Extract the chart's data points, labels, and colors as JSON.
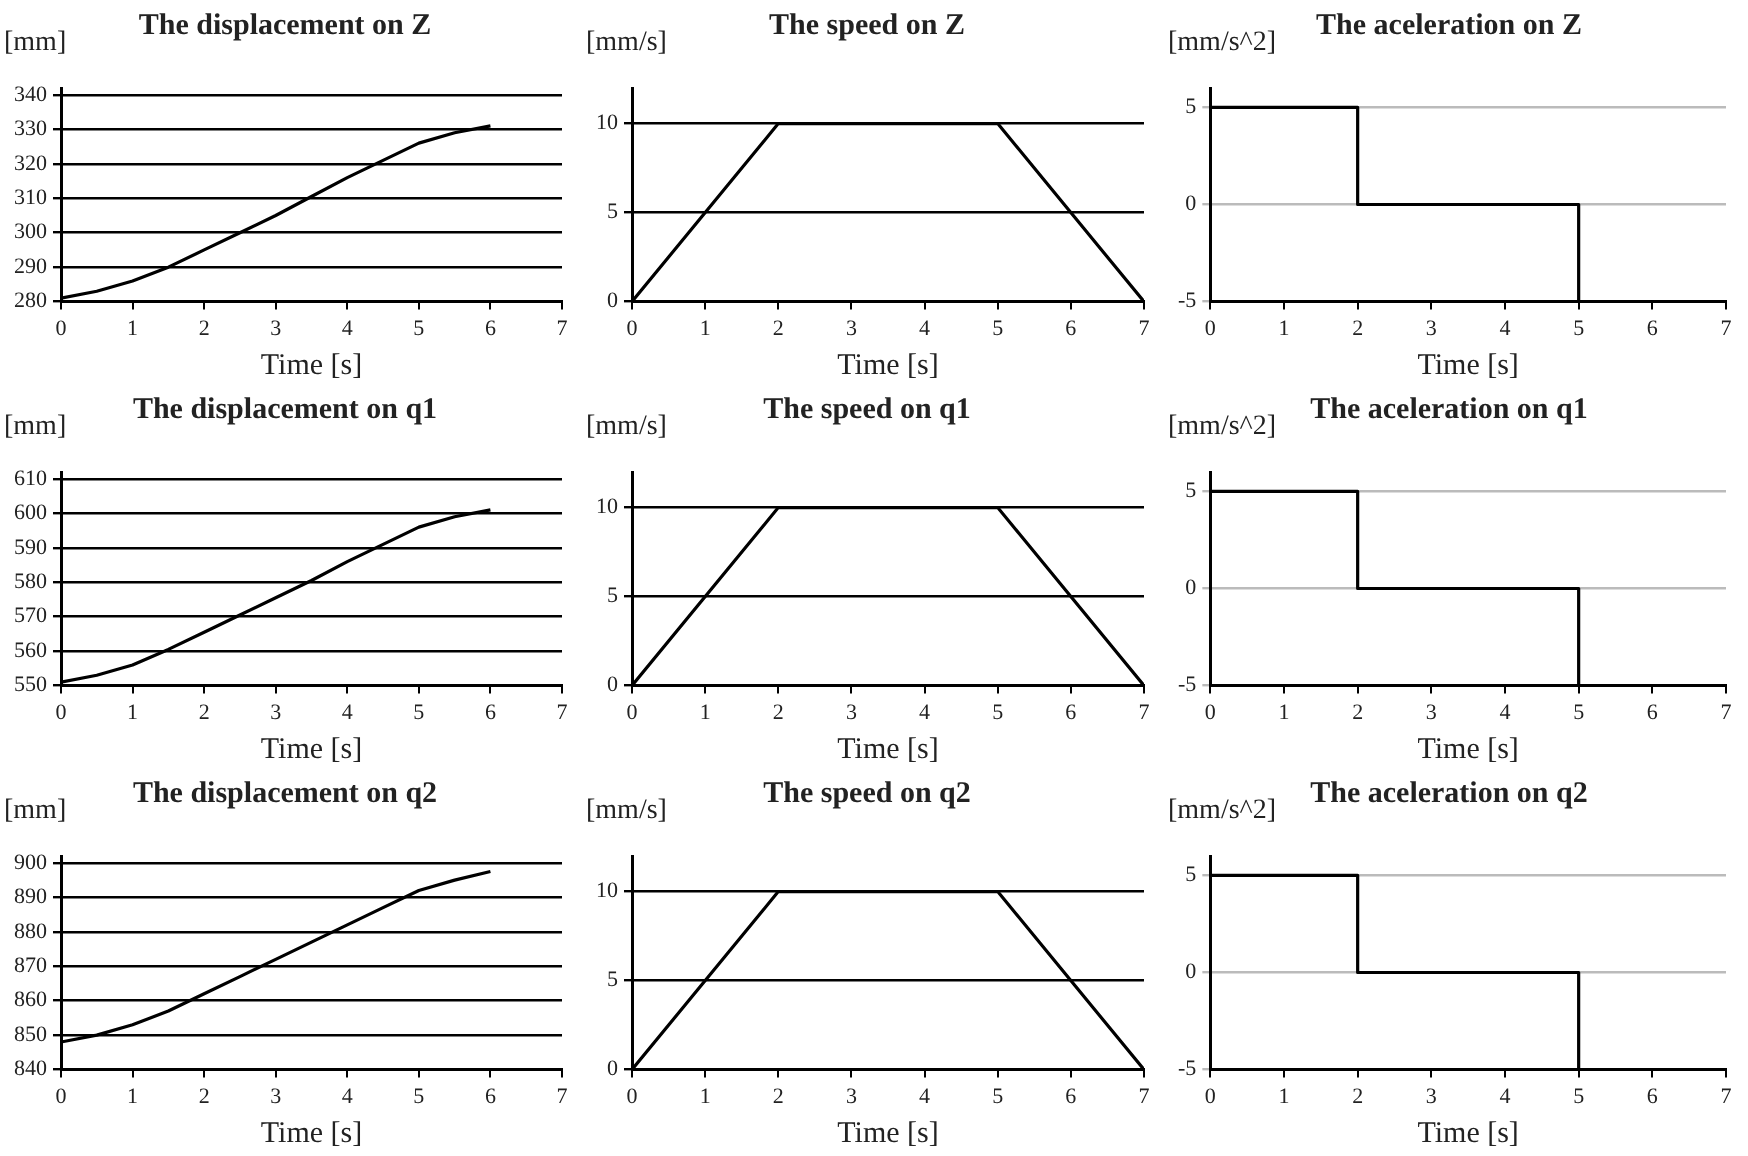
{
  "chart_data": [
    {
      "type": "line",
      "title": "The displacement on Z",
      "ylabel": "[mm]",
      "xlabel": "Time [s]",
      "xlim": [
        0,
        7
      ],
      "xticks": [
        0,
        1,
        2,
        3,
        4,
        5,
        6,
        7
      ],
      "ylim": [
        280,
        342
      ],
      "yticks": [
        280,
        290,
        300,
        310,
        320,
        330,
        340
      ],
      "grid": "y",
      "marker": "none",
      "line_style": "solid",
      "series": [
        {
          "color": "#000000",
          "x": [
            0,
            0.5,
            1,
            1.5,
            2,
            2.5,
            3,
            3.5,
            4,
            4.5,
            5,
            5.5,
            6
          ],
          "values": [
            281,
            283,
            286,
            290,
            295,
            300,
            305,
            310.5,
            316,
            321,
            326,
            329,
            331
          ]
        }
      ]
    },
    {
      "type": "line",
      "title": "The speed on Z",
      "ylabel": "[mm/s]",
      "xlabel": "Time [s]",
      "xlim": [
        0,
        7
      ],
      "xticks": [
        0,
        1,
        2,
        3,
        4,
        5,
        6,
        7
      ],
      "ylim": [
        0,
        12
      ],
      "yticks": [
        0,
        5,
        10
      ],
      "grid": "y",
      "marker": "none",
      "line_style": "solid",
      "series": [
        {
          "color": "#000000",
          "x": [
            0,
            2,
            5,
            7
          ],
          "values": [
            0,
            10,
            10,
            0
          ]
        }
      ]
    },
    {
      "type": "step",
      "title": "The aceleration on Z",
      "ylabel": "[mm/s^2]",
      "xlabel": "Time [s]",
      "xlim": [
        0,
        7
      ],
      "xticks": [
        0,
        1,
        2,
        3,
        4,
        5,
        6,
        7
      ],
      "ylim": [
        -5,
        6
      ],
      "yticks": [
        -5,
        0,
        5
      ],
      "grid": "y",
      "marker": "none",
      "line_style": "solid",
      "series": [
        {
          "color": "#000000",
          "x": [
            0,
            2,
            5,
            7
          ],
          "values": [
            5,
            0,
            -5,
            -5
          ]
        }
      ]
    },
    {
      "type": "line",
      "title": "The displacement on q1",
      "ylabel": "[mm]",
      "xlabel": "Time [s]",
      "xlim": [
        0,
        7
      ],
      "xticks": [
        0,
        1,
        2,
        3,
        4,
        5,
        6,
        7
      ],
      "ylim": [
        550,
        612
      ],
      "yticks": [
        550,
        560,
        570,
        580,
        590,
        600,
        610
      ],
      "grid": "y",
      "marker": "none",
      "line_style": "solid",
      "series": [
        {
          "color": "#000000",
          "x": [
            0,
            0.5,
            1,
            1.5,
            2,
            2.5,
            3,
            3.5,
            4,
            4.5,
            5,
            5.5,
            6
          ],
          "values": [
            551,
            553,
            556,
            560.5,
            565.5,
            570.5,
            575.5,
            580.5,
            586,
            591,
            596,
            599,
            601
          ]
        }
      ]
    },
    {
      "type": "line",
      "title": "The speed on q1",
      "ylabel": "[mm/s]",
      "xlabel": "Time [s]",
      "xlim": [
        0,
        7
      ],
      "xticks": [
        0,
        1,
        2,
        3,
        4,
        5,
        6,
        7
      ],
      "ylim": [
        0,
        12
      ],
      "yticks": [
        0,
        5,
        10
      ],
      "grid": "y",
      "marker": "none",
      "line_style": "solid",
      "series": [
        {
          "color": "#000000",
          "x": [
            0,
            2,
            5,
            7
          ],
          "values": [
            0,
            10,
            10,
            0
          ]
        }
      ]
    },
    {
      "type": "step",
      "title": "The aceleration on q1",
      "ylabel": "[mm/s^2]",
      "xlabel": "Time [s]",
      "xlim": [
        0,
        7
      ],
      "xticks": [
        0,
        1,
        2,
        3,
        4,
        5,
        6,
        7
      ],
      "ylim": [
        -5,
        6
      ],
      "yticks": [
        -5,
        0,
        5
      ],
      "grid": "y",
      "marker": "none",
      "line_style": "solid",
      "series": [
        {
          "color": "#000000",
          "x": [
            0,
            2,
            5,
            7
          ],
          "values": [
            5,
            0,
            -5,
            -5
          ]
        }
      ]
    },
    {
      "type": "line",
      "title": "The displacement on q2",
      "ylabel": "[mm]",
      "xlabel": "Time [s]",
      "xlim": [
        0,
        7
      ],
      "xticks": [
        0,
        1,
        2,
        3,
        4,
        5,
        6,
        7
      ],
      "ylim": [
        840,
        902
      ],
      "yticks": [
        840,
        850,
        860,
        870,
        880,
        890,
        900
      ],
      "grid": "y",
      "marker": "none",
      "line_style": "solid",
      "series": [
        {
          "color": "#000000",
          "x": [
            0,
            0.5,
            1,
            1.5,
            2,
            2.5,
            3,
            3.5,
            4,
            4.5,
            5,
            5.5,
            6
          ],
          "values": [
            848,
            850,
            853,
            857,
            862,
            867,
            872,
            877,
            882,
            887,
            892,
            895,
            897.5
          ]
        }
      ]
    },
    {
      "type": "line",
      "title": "The speed on q2",
      "ylabel": "[mm/s]",
      "xlabel": "Time [s]",
      "xlim": [
        0,
        7
      ],
      "xticks": [
        0,
        1,
        2,
        3,
        4,
        5,
        6,
        7
      ],
      "ylim": [
        0,
        12
      ],
      "yticks": [
        0,
        5,
        10
      ],
      "grid": "y",
      "marker": "none",
      "line_style": "solid",
      "series": [
        {
          "color": "#000000",
          "x": [
            0,
            2,
            5,
            7
          ],
          "values": [
            0,
            10,
            10,
            0
          ]
        }
      ]
    },
    {
      "type": "step",
      "title": "The aceleration on q2",
      "ylabel": "[mm/s^2]",
      "xlabel": "Time [s]",
      "xlim": [
        0,
        7
      ],
      "xticks": [
        0,
        1,
        2,
        3,
        4,
        5,
        6,
        7
      ],
      "ylim": [
        -5,
        6
      ],
      "yticks": [
        -5,
        0,
        5
      ],
      "grid": "y",
      "marker": "none",
      "line_style": "solid",
      "series": [
        {
          "color": "#000000",
          "x": [
            0,
            2,
            5,
            7
          ],
          "values": [
            5,
            0,
            -5,
            -5
          ]
        }
      ]
    }
  ]
}
